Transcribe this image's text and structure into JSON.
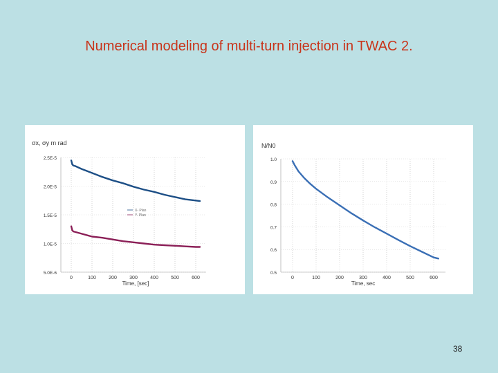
{
  "slide": {
    "title": "Numerical modeling of multi-turn injection in TWAC 2.",
    "page_number": "38"
  },
  "chart_data": [
    {
      "type": "line",
      "title": "",
      "ylabel": "σx, σy m rad",
      "xlabel": "Time, [sec]",
      "xlim": [
        -50,
        650
      ],
      "ylim": [
        5e-06,
        2.5e-05
      ],
      "x_ticks": [
        0,
        100,
        200,
        300,
        400,
        500,
        600
      ],
      "x_tick_labels": [
        "0",
        "100",
        "200",
        "300",
        "400",
        "500",
        "600"
      ],
      "y_ticks": [
        2.5e-05,
        2e-05,
        1.5e-05,
        1e-05,
        5e-06
      ],
      "y_tick_labels": [
        "2.5E-5",
        "2.0E-5",
        "1.5E-5",
        "1.0E-5",
        "5.0E-6"
      ],
      "legend": [
        "X- Plan",
        "Y- Plan"
      ],
      "legend_position": "center",
      "grid": true,
      "series": [
        {
          "name": "X- Plan",
          "color": "#1d4f86",
          "x": [
            0,
            5,
            10,
            20,
            50,
            100,
            150,
            200,
            250,
            300,
            350,
            400,
            450,
            500,
            550,
            600,
            620
          ],
          "y": [
            2.45e-05,
            2.38e-05,
            2.36e-05,
            2.35e-05,
            2.3e-05,
            2.23e-05,
            2.16e-05,
            2.1e-05,
            2.05e-05,
            1.99e-05,
            1.94e-05,
            1.9e-05,
            1.85e-05,
            1.81e-05,
            1.77e-05,
            1.75e-05,
            1.74e-05
          ]
        },
        {
          "name": "Y- Plan",
          "color": "#8b1f57",
          "x": [
            0,
            5,
            10,
            20,
            50,
            100,
            150,
            200,
            250,
            300,
            350,
            400,
            450,
            500,
            550,
            600,
            620
          ],
          "y": [
            1.3e-05,
            1.23e-05,
            1.21e-05,
            1.2e-05,
            1.17e-05,
            1.12e-05,
            1.1e-05,
            1.07e-05,
            1.04e-05,
            1.02e-05,
            1e-05,
            9.8e-06,
            9.7e-06,
            9.6e-06,
            9.5e-06,
            9.4e-06,
            9.4e-06
          ]
        }
      ]
    },
    {
      "type": "line",
      "title": "",
      "ylabel": "N/N0",
      "xlabel": "Time, sec",
      "xlim": [
        -50,
        650
      ],
      "ylim": [
        0.5,
        1.0
      ],
      "x_ticks": [
        0,
        100,
        200,
        300,
        400,
        500,
        600
      ],
      "x_tick_labels": [
        "0",
        "100",
        "200",
        "300",
        "400",
        "500",
        "600"
      ],
      "y_ticks": [
        1.0,
        0.9,
        0.8,
        0.7,
        0.6,
        0.5
      ],
      "y_tick_labels": [
        "1.0",
        "0.9",
        "0.8",
        "0.7",
        "0.6",
        "0.5"
      ],
      "grid": true,
      "series": [
        {
          "name": "N/N0",
          "color": "#3a6fb5",
          "x": [
            0,
            10,
            25,
            50,
            75,
            100,
            150,
            200,
            250,
            300,
            350,
            400,
            450,
            500,
            550,
            600,
            620
          ],
          "y": [
            0.99,
            0.97,
            0.945,
            0.915,
            0.89,
            0.868,
            0.83,
            0.795,
            0.76,
            0.728,
            0.698,
            0.67,
            0.642,
            0.615,
            0.59,
            0.565,
            0.56
          ]
        }
      ]
    }
  ]
}
